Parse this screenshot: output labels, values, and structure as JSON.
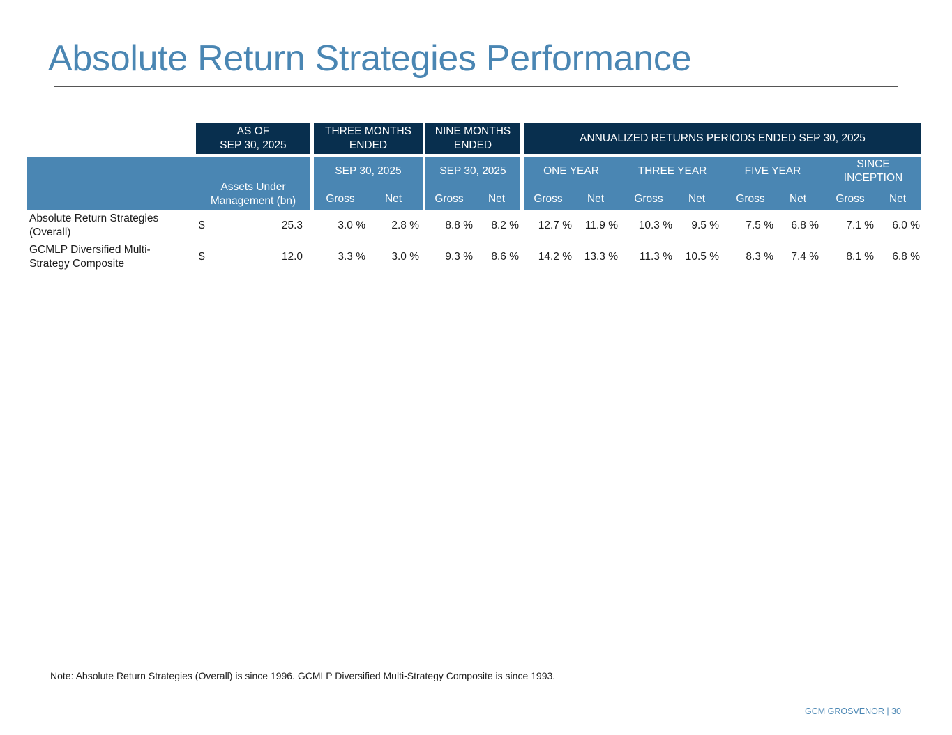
{
  "title": "Absolute Return Strategies Performance",
  "table": {
    "top_headers": {
      "as_of": [
        "AS OF",
        "SEP 30, 2025"
      ],
      "three_months": [
        "THREE MONTHS",
        "ENDED"
      ],
      "nine_months": [
        "NINE MONTHS",
        "ENDED"
      ],
      "annualized": "ANNUALIZED RETURNS PERIODS ENDED SEP 30, 2025"
    },
    "sub_headers": {
      "aum": [
        "Assets Under",
        "Management (bn)"
      ],
      "three_months_date": "SEP 30, 2025",
      "nine_months_date": "SEP 30, 2025",
      "one_year": "ONE YEAR",
      "three_year": "THREE YEAR",
      "five_year": "FIVE YEAR",
      "since_inception": [
        "SINCE",
        "INCEPTION"
      ],
      "gross": "Gross",
      "net": "Net"
    },
    "rows": [
      {
        "label": "Absolute Return Strategies (Overall)",
        "currency": "$",
        "aum": "25.3",
        "values": [
          "3.0 %",
          "2.8 %",
          "8.8 %",
          "8.2 %",
          "12.7 %",
          "11.9 %",
          "10.3 %",
          "9.5 %",
          "7.5 %",
          "6.8 %",
          "7.1 %",
          "6.0 %"
        ]
      },
      {
        "label": "GCMLP Diversified Multi-Strategy Composite",
        "currency": "$",
        "aum": "12.0",
        "values": [
          "3.3 %",
          "3.0 %",
          "9.3 %",
          "8.6 %",
          "14.2 %",
          "13.3 %",
          "11.3 %",
          "10.5 %",
          "8.3 %",
          "7.4 %",
          "8.1 %",
          "6.8 %"
        ]
      }
    ]
  },
  "note": "Note: Absolute Return Strategies (Overall) is since 1996. GCMLP Diversified Multi-Strategy Composite is since 1993.",
  "footer": "GCM GROSVENOR | 30",
  "colors": {
    "accent": "#4a86b3",
    "dark_header": "#082f4e"
  }
}
